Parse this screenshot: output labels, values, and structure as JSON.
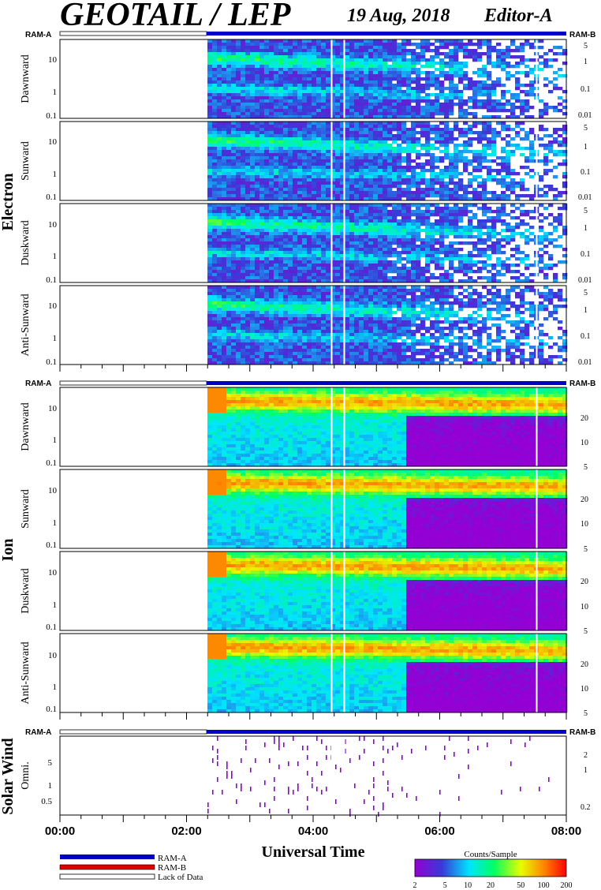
{
  "header": {
    "title": "GEOTAIL / LEP",
    "date": "19 Aug, 2018",
    "editor": "Editor-A"
  },
  "ram_labels": {
    "left": "RAM-A",
    "right": "RAM-B"
  },
  "chart_data": {
    "type": "heatmap",
    "xlabel": "Universal Time",
    "x_ticks": [
      "00:00",
      "02:00",
      "04:00",
      "06:00",
      "08:00"
    ],
    "x_range_hours": [
      0,
      8
    ],
    "data_start_hour": 2.33,
    "data_gaps_hours": [
      4.28,
      4.48,
      7.52
    ],
    "groups": [
      {
        "name": "Electron",
        "panels": [
          {
            "label": "Dawnward",
            "left_ticks": [
              "10",
              "1",
              "0.1"
            ],
            "right_ticks": [
              "5",
              "1",
              "0.1",
              "0.01"
            ]
          },
          {
            "label": "Sunward",
            "left_ticks": [
              "10",
              "1",
              "0.1"
            ],
            "right_ticks": [
              "5",
              "1",
              "0.1",
              "0.01"
            ]
          },
          {
            "label": "Duskward",
            "left_ticks": [
              "10",
              "1",
              "0.1"
            ],
            "right_ticks": [
              "5",
              "1",
              "0.1",
              "0.01"
            ]
          },
          {
            "label": "Anti-Sunward",
            "left_ticks": [
              "10",
              "1",
              "0.1"
            ],
            "right_ticks": [
              "5",
              "1",
              "0.1",
              "0.01"
            ]
          }
        ]
      },
      {
        "name": "Ion",
        "panels": [
          {
            "label": "Dawnward",
            "left_ticks": [
              "10",
              "1",
              "0.1"
            ],
            "right_ticks": [
              "20",
              "10",
              "5"
            ]
          },
          {
            "label": "Sunward",
            "left_ticks": [
              "10",
              "1",
              "0.1"
            ],
            "right_ticks": [
              "20",
              "10",
              "5"
            ]
          },
          {
            "label": "Duskward",
            "left_ticks": [
              "10",
              "1",
              "0.1"
            ],
            "right_ticks": [
              "20",
              "10",
              "5"
            ]
          },
          {
            "label": "Anti-Sunward",
            "left_ticks": [
              "10",
              "1",
              "0.1"
            ],
            "right_ticks": [
              "20",
              "10",
              "5"
            ]
          }
        ]
      },
      {
        "name": "Solar Wind",
        "panels": [
          {
            "label": "Omni.",
            "left_ticks": [
              "5",
              "1",
              "0.5"
            ],
            "right_ticks": [
              "2",
              "1",
              "0.2"
            ]
          }
        ]
      }
    ],
    "colorbar": {
      "title": "Counts/Sample",
      "ticks": [
        "2",
        "5",
        "10",
        "20",
        "50",
        "100",
        "200"
      ],
      "scale": "log",
      "colors": [
        "#9400d3",
        "#3a3ad8",
        "#00e5ff",
        "#00ff66",
        "#e6ff00",
        "#ff7f00",
        "#ff0000"
      ]
    },
    "legend": [
      {
        "label": "RAM-A",
        "color": "#0000c8"
      },
      {
        "label": "RAM-B",
        "color": "#e00000"
      },
      {
        "label": "Lack of Data",
        "color": "#ffffff"
      }
    ]
  }
}
